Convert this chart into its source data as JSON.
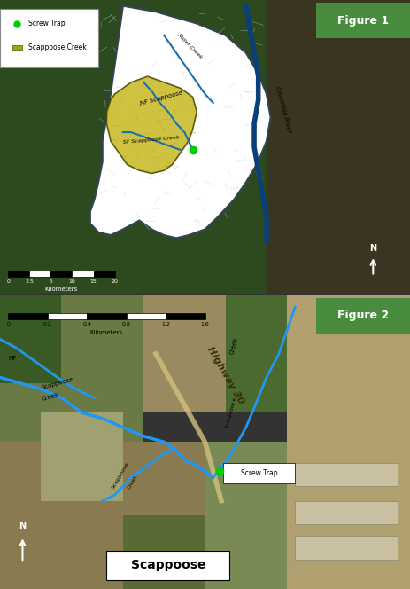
{
  "fig_width": 4.63,
  "fig_height": 6.64,
  "dpi": 100,
  "panel1_label": "Figure 1",
  "panel2_label": "Figure 2",
  "panel1_label_bg": "#4a8c3f",
  "panel2_label_bg": "#4a8c3f",
  "label_text_color": "white",
  "legend1_items": [
    {
      "label": "Screw Trap",
      "color": "#00cc00",
      "marker": "o"
    },
    {
      "label": "Scappoose Creek",
      "color": "#9aaa00",
      "marker": "s"
    }
  ],
  "scale_bar1_label": "Kilometers",
  "scale_bar1_ticks": [
    "0",
    "2.5",
    "5",
    "10",
    "15",
    "20"
  ],
  "scale_bar2_label": "Kilometers",
  "scale_bar2_ticks": [
    "0",
    "0.2",
    "0.4",
    "0.8",
    "1.2",
    "1.6"
  ],
  "map1_bg": "#2d5a1b",
  "map2_text_scappoose": "Scappoose",
  "map1_watershed_color": "#c8b820",
  "map1_watershed_outline": "#333300",
  "map1_water_color": "#a8d4f5",
  "map1_watershed_bg": "#ffffff",
  "map1_river_color": "#1a6faf",
  "creek_label1": "NF Scappoose",
  "creek_label2": "SF Scappoose Creek",
  "creek_label3": "Miller Creek",
  "creek_label4": "Columbia River",
  "fig2_creek_color": "#2196F3",
  "fig2_road_label": "Highway 30",
  "fig2_screw_trap_label": "Screw Trap",
  "fig2_screw_trap_color": "#00cc00",
  "fig2_bottom_label": "Scappoose",
  "fig2_bottom_label_bg": "white",
  "fig2_bottom_label_color": "black",
  "north_arrow_color": "white",
  "border_color": "#555555"
}
